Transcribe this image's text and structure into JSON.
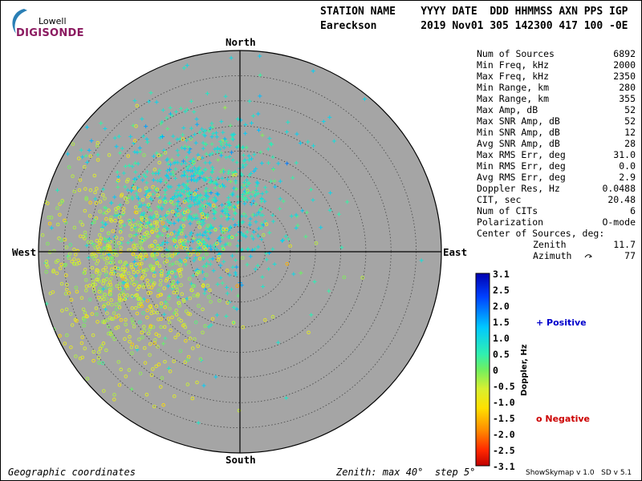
{
  "logo": {
    "line1": "Lowell",
    "line2": "DIGISONDE"
  },
  "header": {
    "line1": "STATION NAME    YYYY DATE  DDD HHMMSS AXN PPS IGP",
    "line2": "Eareckson       2019 Nov01 305 142300 417 100 -0E"
  },
  "compass": {
    "north": "North",
    "south": "South",
    "east": "East",
    "west": "West"
  },
  "stats": [
    {
      "label": "Num of Sources",
      "value": "6892"
    },
    {
      "label": "Min Freq, kHz",
      "value": "2000"
    },
    {
      "label": "Max Freq, kHz",
      "value": "2350"
    },
    {
      "label": "Min Range, km",
      "value": "280"
    },
    {
      "label": "Max Range, km",
      "value": "355"
    },
    {
      "label": "Max Amp, dB",
      "value": "52"
    },
    {
      "label": "Max SNR Amp, dB",
      "value": "52"
    },
    {
      "label": "Min SNR Amp, dB",
      "value": "12"
    },
    {
      "label": "Avg SNR Amp, dB",
      "value": "28"
    },
    {
      "label": "Max RMS Err, deg",
      "value": "31.0"
    },
    {
      "label": "Min RMS Err, deg",
      "value": "0.0"
    },
    {
      "label": "Avg RMS Err, deg",
      "value": "2.9"
    },
    {
      "label": "Doppler Res, Hz",
      "value": "0.0488"
    },
    {
      "label": "CIT, sec",
      "value": "20.48"
    },
    {
      "label": "Num of CITs",
      "value": "6"
    },
    {
      "label": "Polarization",
      "value": "O-mode"
    }
  ],
  "center": {
    "title": "Center of Sources, deg:",
    "zenith_label": "Zenith",
    "zenith_value": "11.7",
    "azimuth_label": "Azimuth",
    "azimuth_value": "77"
  },
  "colorbar": {
    "ticks": [
      "3.1",
      "2.5",
      "2.0",
      "1.5",
      "1.0",
      "0.5",
      "0",
      "-0.5",
      "-1.0",
      "-1.5",
      "-2.0",
      "-2.5",
      "-3.1"
    ],
    "label": "Doppler, Hz",
    "positive_label": "Positive",
    "negative_label": "Negative",
    "positive_color": "#0000cc",
    "negative_color": "#cc0000"
  },
  "footer": {
    "left": "Geographic coordinates",
    "middle": "Zenith: max 40°  step 5°",
    "right": "ShowSkymap v 1.0   SD v 5.1"
  },
  "chart_data": {
    "type": "scatter",
    "projection": "polar skymap",
    "zenith_max_deg": 40,
    "zenith_step_deg": 5,
    "num_sources": 6892,
    "color_scale": {
      "variable": "Doppler, Hz",
      "min": -3.1,
      "max": 3.1
    },
    "source_groups": [
      {
        "marker": "+",
        "doppler_sign": "positive",
        "approx_center": {
          "zenith_deg": 13,
          "azimuth_deg": 320
        },
        "approx_doppler_hz": 0.8,
        "share": 0.55
      },
      {
        "marker": "o",
        "doppler_sign": "negative",
        "approx_center": {
          "zenith_deg": 22,
          "azimuth_deg": 260
        },
        "approx_doppler_hz": -0.6,
        "share": 0.45
      }
    ]
  }
}
